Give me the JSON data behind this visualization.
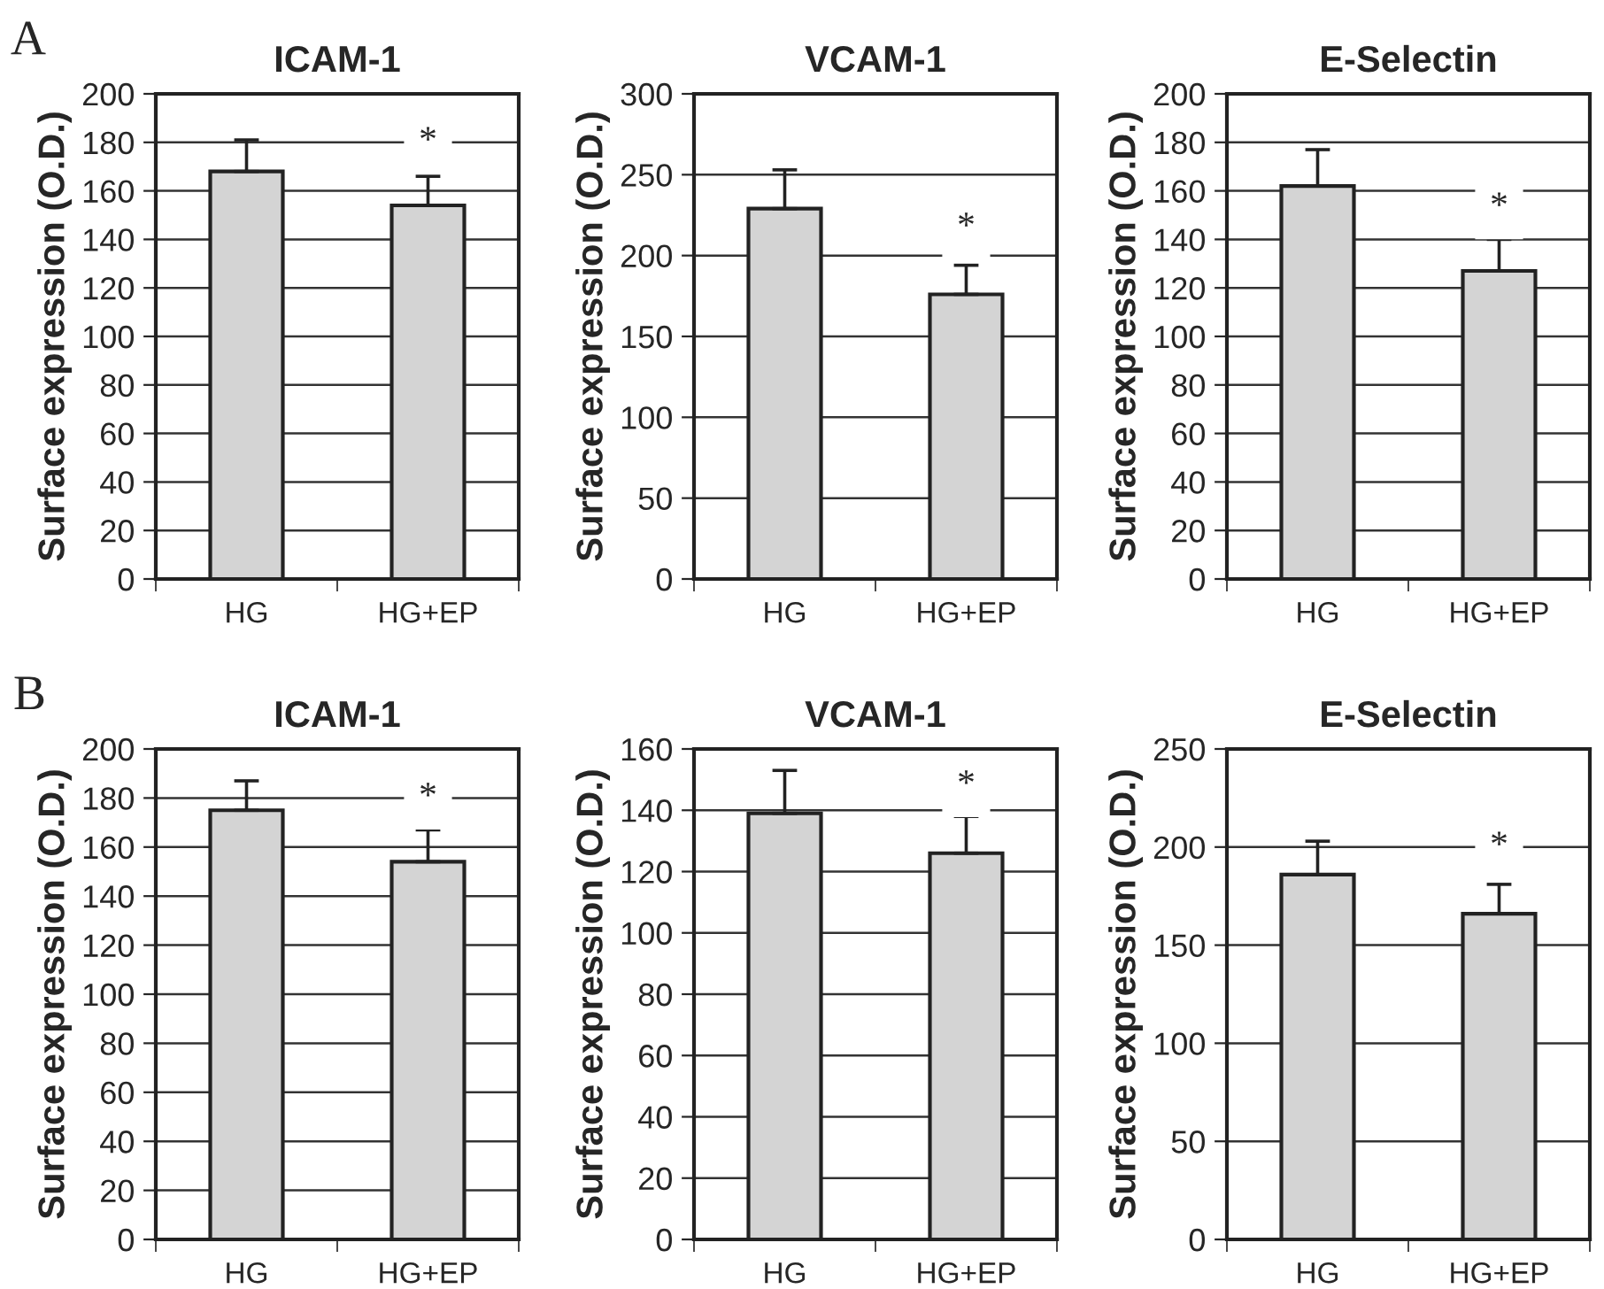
{
  "chart_data": [
    {
      "type": "bar",
      "title": "ICAM-1",
      "ylabel": "Surface expression (O.D.)",
      "categories": [
        "HG",
        "HG+EP"
      ],
      "values": [
        168,
        154
      ],
      "errors": [
        [
          168,
          181
        ],
        [
          154,
          166
        ]
      ],
      "color": "#d4d4d4",
      "ylim": [
        0,
        200
      ],
      "yticks": [
        0,
        20,
        40,
        60,
        80,
        100,
        120,
        140,
        160,
        180,
        200
      ],
      "grid": "y",
      "annotations": [
        "A",
        {
          "text": "*",
          "x": "HG+EP",
          "y": 180
        }
      ]
    },
    {
      "type": "bar",
      "title": "VCAM-1",
      "ylabel": "Surface expression (O.D.)",
      "categories": [
        "HG",
        "HG+EP"
      ],
      "values": [
        229,
        176
      ],
      "errors": [
        [
          229,
          253
        ],
        [
          176,
          194
        ]
      ],
      "color": "#d4d4d4",
      "ylim": [
        0,
        300
      ],
      "yticks": [
        0,
        50,
        100,
        150,
        200,
        250,
        300
      ],
      "grid": "y",
      "annotations": [
        {
          "text": "*",
          "x": "HG+EP",
          "y": 217
        }
      ]
    },
    {
      "type": "bar",
      "title": "E-Selectin",
      "ylabel": "Surface expression (O.D.)",
      "categories": [
        "HG",
        "HG+EP"
      ],
      "values": [
        162,
        127
      ],
      "errors": [
        [
          162,
          177
        ],
        [
          127,
          140
        ]
      ],
      "color": "#d4d4d4",
      "ylim": [
        0,
        200
      ],
      "yticks": [
        0,
        20,
        40,
        60,
        80,
        100,
        120,
        140,
        160,
        180,
        200
      ],
      "grid": "y",
      "annotations": [
        {
          "text": "*",
          "x": "HG+EP",
          "y": 153
        }
      ]
    },
    {
      "type": "bar",
      "title": "ICAM-1",
      "ylabel": "Surface expression (O.D.)",
      "categories": [
        "HG",
        "HG+EP"
      ],
      "values": [
        175,
        154
      ],
      "errors": [
        [
          175,
          187
        ],
        [
          154,
          167
        ]
      ],
      "color": "#d4d4d4",
      "ylim": [
        0,
        200
      ],
      "yticks": [
        0,
        20,
        40,
        60,
        80,
        100,
        120,
        140,
        160,
        180,
        200
      ],
      "grid": "y",
      "annotations": [
        "B",
        {
          "text": "*",
          "x": "HG+EP",
          "y": 180
        }
      ]
    },
    {
      "type": "bar",
      "title": "VCAM-1",
      "ylabel": "Surface expression (O.D.)",
      "categories": [
        "HG",
        "HG+EP"
      ],
      "values": [
        139,
        126
      ],
      "errors": [
        [
          139,
          153
        ],
        [
          126,
          138
        ]
      ],
      "color": "#d4d4d4",
      "ylim": [
        0,
        160
      ],
      "yticks": [
        0,
        20,
        40,
        60,
        80,
        100,
        120,
        140,
        160
      ],
      "grid": "y",
      "annotations": [
        {
          "text": "*",
          "x": "HG+EP",
          "y": 148
        }
      ]
    },
    {
      "type": "bar",
      "title": "E-Selectin",
      "ylabel": "Surface expression (O.D.)",
      "categories": [
        "HG",
        "HG+EP"
      ],
      "values": [
        186,
        166
      ],
      "errors": [
        [
          186,
          203
        ],
        [
          166,
          181
        ]
      ],
      "color": "#d4d4d4",
      "ylim": [
        0,
        250
      ],
      "yticks": [
        0,
        50,
        100,
        150,
        200,
        250
      ],
      "grid": "y",
      "annotations": [
        {
          "text": "*",
          "x": "HG+EP",
          "y": 200
        }
      ]
    }
  ]
}
